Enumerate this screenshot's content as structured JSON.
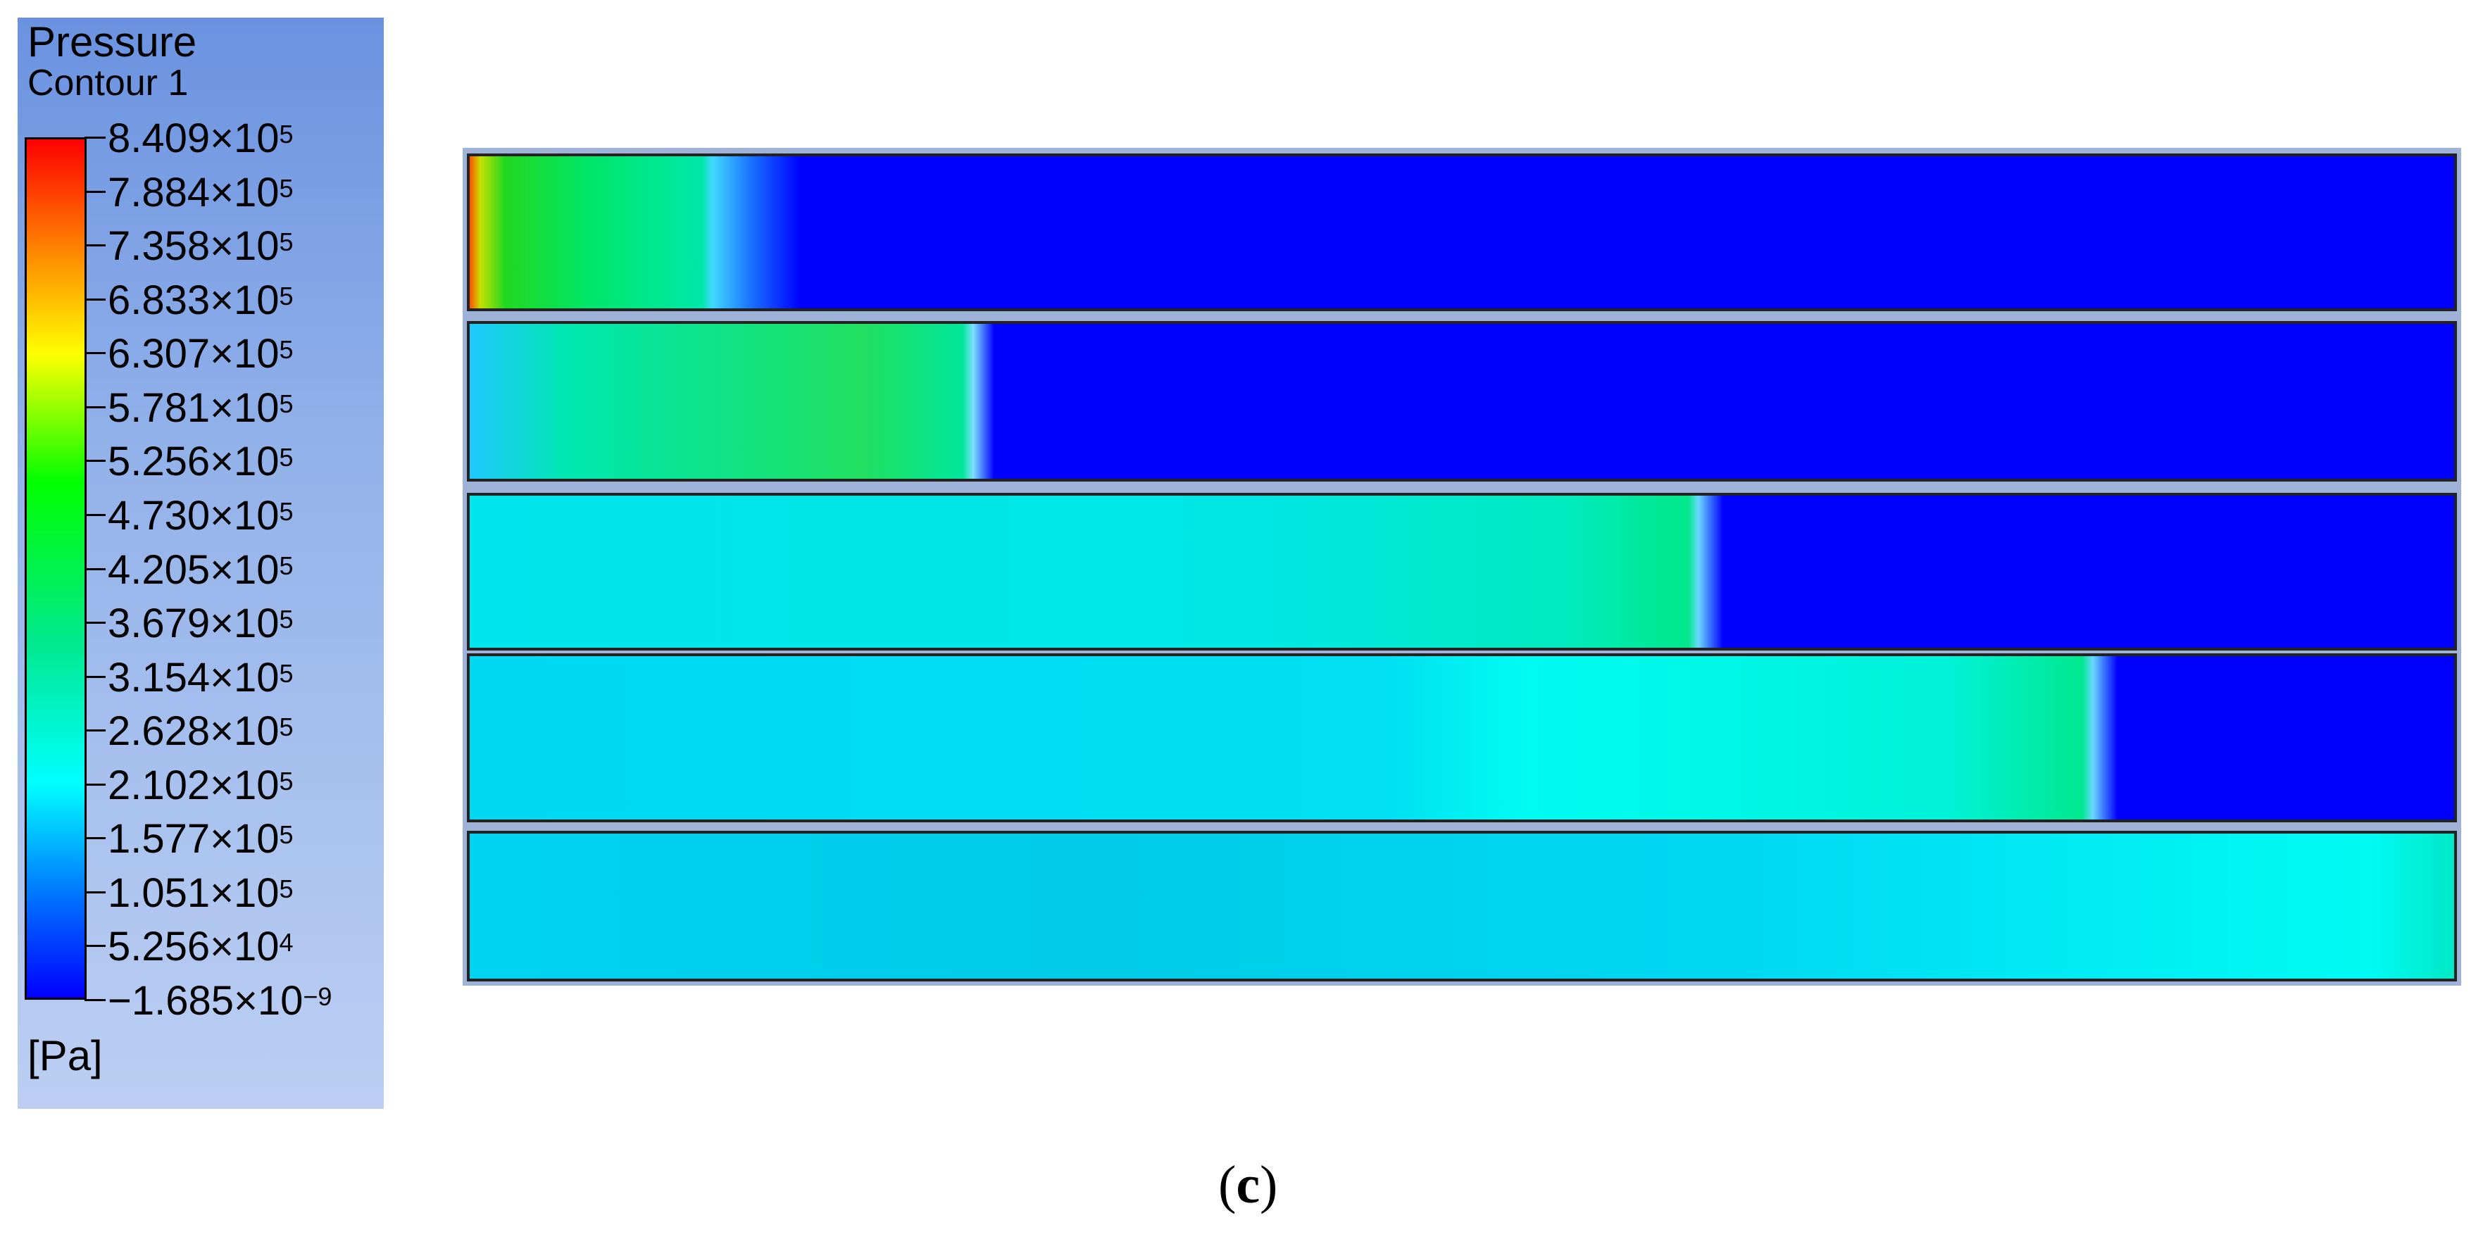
{
  "legend": {
    "title": "Pressure",
    "subtitle": "Contour 1",
    "unit": "[Pa]",
    "ticks": [
      {
        "mantissa": "8.409",
        "exp": "5"
      },
      {
        "mantissa": "7.884",
        "exp": "5"
      },
      {
        "mantissa": "7.358",
        "exp": "5"
      },
      {
        "mantissa": "6.833",
        "exp": "5"
      },
      {
        "mantissa": "6.307",
        "exp": "5"
      },
      {
        "mantissa": "5.781",
        "exp": "5"
      },
      {
        "mantissa": "5.256",
        "exp": "5"
      },
      {
        "mantissa": "4.730",
        "exp": "5"
      },
      {
        "mantissa": "4.205",
        "exp": "5"
      },
      {
        "mantissa": "3.679",
        "exp": "5"
      },
      {
        "mantissa": "3.154",
        "exp": "5"
      },
      {
        "mantissa": "2.628",
        "exp": "5"
      },
      {
        "mantissa": "2.102",
        "exp": "5"
      },
      {
        "mantissa": "1.577",
        "exp": "5"
      },
      {
        "mantissa": "1.051",
        "exp": "5"
      },
      {
        "mantissa": "5.256",
        "exp": "4"
      },
      {
        "mantissa": "−1.685",
        "exp": "−9"
      }
    ],
    "colormap": [
      "#ff0000",
      "#ff8000",
      "#ffff00",
      "#00ff00",
      "#00e88a",
      "#00ffff",
      "#0080ff",
      "#0000ff"
    ]
  },
  "caption": {
    "open": "(",
    "letter": "c",
    "close": ")"
  }
}
